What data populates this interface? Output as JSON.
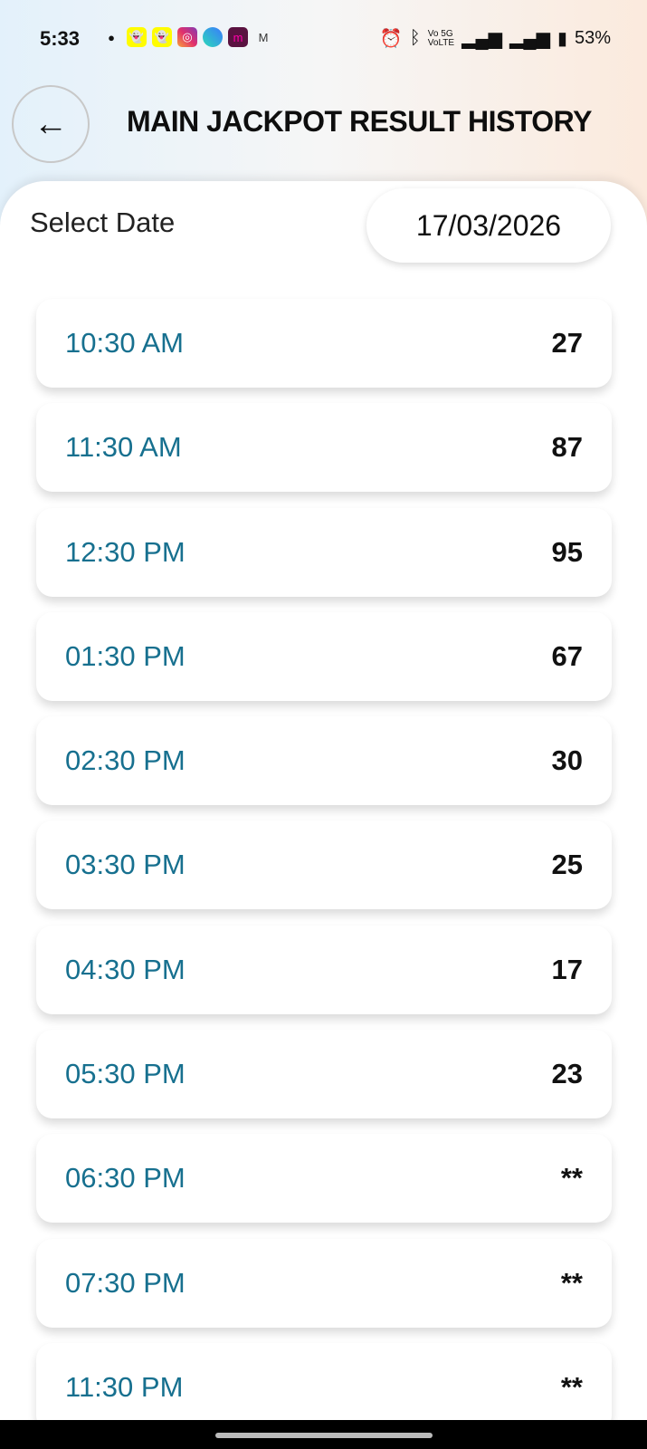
{
  "status_bar": {
    "time": "5:33",
    "battery": "53%",
    "notification_icons": [
      "chat-icon",
      "snapchat-icon",
      "snapchat-icon",
      "instagram-icon",
      "messenger-icon",
      "meesho-icon",
      "gmail-icon"
    ],
    "system_icons": [
      "alarm-icon",
      "bluetooth-icon",
      "volte-icon",
      "5g-signal-icon",
      "signal-icon",
      "battery-icon"
    ]
  },
  "header": {
    "title": "MAIN JACKPOT RESULT HISTORY"
  },
  "date_picker": {
    "label": "Select Date",
    "value": "17/03/2026"
  },
  "colors": {
    "time_text": "#17708f",
    "result_text": "#111111"
  },
  "results": [
    {
      "time": "10:30 AM",
      "value": "27"
    },
    {
      "time": "11:30 AM",
      "value": "87"
    },
    {
      "time": "12:30 PM",
      "value": "95"
    },
    {
      "time": "01:30 PM",
      "value": "67"
    },
    {
      "time": "02:30 PM",
      "value": "30"
    },
    {
      "time": "03:30 PM",
      "value": "25"
    },
    {
      "time": "04:30 PM",
      "value": "17"
    },
    {
      "time": "05:30 PM",
      "value": "23"
    },
    {
      "time": "06:30 PM",
      "value": "**"
    },
    {
      "time": "07:30 PM",
      "value": "**"
    },
    {
      "time": "11:30 PM",
      "value": "**"
    }
  ]
}
